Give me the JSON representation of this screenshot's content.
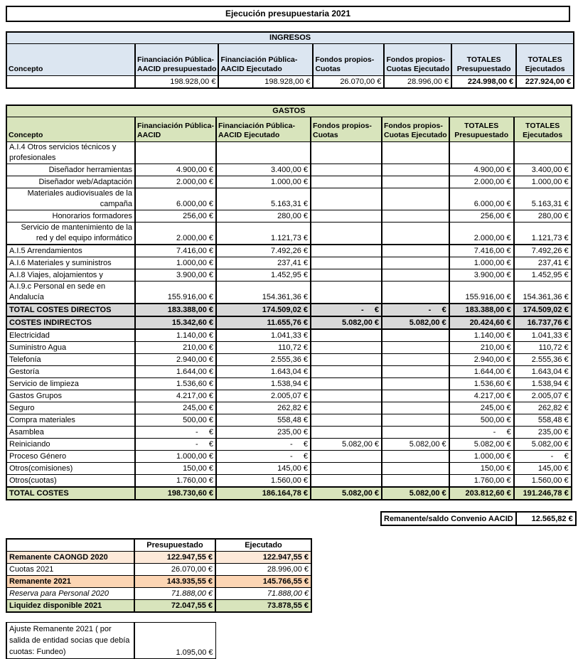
{
  "title": "Ejecución presupuestaria 2021",
  "colors": {
    "blue": "#dce6f1",
    "green": "#d8e4bc",
    "gray": "#d9d9d9",
    "peach": "#fde9d9",
    "orange": "#fcd5b4"
  },
  "ingresos": {
    "section_title": "INGRESOS",
    "headers": [
      "Concepto",
      "Financiación Pública-\nAACID presupuestado",
      "Financiación Pública-\nAACID Ejecutado",
      "Fondos propios-\nCuotas",
      "Fondos propios-\nCuotas Ejecutado",
      "TOTALES\nPresupuestado",
      "TOTALES\nEjecutados"
    ],
    "values": [
      "198.928,00 €",
      "198.928,00 €",
      "26.070,00 €",
      "28.996,00 €",
      "224.998,00 €",
      "227.924,00 €"
    ]
  },
  "gastos": {
    "section_title": "GASTOS",
    "headers": [
      "Concepto",
      "Financiación Pública-\nAACID",
      "Financiación Pública-\nAACID Ejecutado",
      "Fondos propios-\nCuotas",
      "Fondos propios-\nCuotas Ejecutado",
      "TOTALES\nPresupuestado",
      "TOTALES\nEjecutados"
    ],
    "rows": [
      {
        "label": "A.I.4 Otros servicios técnicos y profesionales",
        "align": "left",
        "style": "",
        "thick_top": false,
        "values": [
          "",
          "",
          "",
          "",
          "",
          ""
        ]
      },
      {
        "label": "Diseñador herramientas",
        "align": "right",
        "style": "",
        "thick_top": false,
        "values": [
          "4.900,00 €",
          "3.400,00 €",
          "",
          "",
          "4.900,00 €",
          "3.400,00 €"
        ]
      },
      {
        "label": "Diseñador web/Adaptación",
        "align": "right",
        "style": "",
        "thick_top": false,
        "values": [
          "2.000,00 €",
          "1.000,00 €",
          "",
          "",
          "2.000,00 €",
          "1.000,00 €"
        ]
      },
      {
        "label": "Materiales audiovisuales de la campaña",
        "align": "right",
        "style": "",
        "thick_top": false,
        "values": [
          "6.000,00 €",
          "5.163,31 €",
          "",
          "",
          "6.000,00 €",
          "5.163,31 €"
        ]
      },
      {
        "label": "Honorarios formadores",
        "align": "right",
        "style": "",
        "thick_top": false,
        "values": [
          "256,00 €",
          "280,00 €",
          "",
          "",
          "256,00 €",
          "280,00 €"
        ]
      },
      {
        "label": "Servicio de mantenimiento de la red y del equipo informático",
        "align": "right",
        "style": "",
        "thick_top": false,
        "values": [
          "2.000,00 €",
          "1.121,73 €",
          "",
          "",
          "2.000,00 €",
          "1.121,73 €"
        ]
      },
      {
        "label": "A.I.5 Arrendamientos",
        "align": "left",
        "style": "",
        "thick_top": true,
        "values": [
          "7.416,00 €",
          "7.492,26 €",
          "",
          "",
          "7.416,00 €",
          "7.492,26 €"
        ]
      },
      {
        "label": "A.I.6 Materiales y suministros",
        "align": "left",
        "style": "",
        "thick_top": false,
        "values": [
          "1.000,00 €",
          "237,41 €",
          "",
          "",
          "1.000,00 €",
          "237,41 €"
        ]
      },
      {
        "label": "A.I.8 Viajes, alojamientos y",
        "align": "left",
        "style": "",
        "thick_top": false,
        "values": [
          "3.900,00 €",
          "1.452,95 €",
          "",
          "",
          "3.900,00 €",
          "1.452,95 €"
        ]
      },
      {
        "label": "A.I.9.c Personal en sede en Andalucía",
        "align": "left",
        "style": "",
        "thick_top": false,
        "values": [
          "155.916,00 €",
          "154.361,36 €",
          "",
          "",
          "155.916,00 €",
          "154.361,36 €"
        ]
      },
      {
        "label": "TOTAL COSTES DIRECTOS",
        "align": "left",
        "style": "gray",
        "thick_top": true,
        "values": [
          "183.388,00 €",
          "174.509,02 €",
          "-     €",
          "-     €",
          "183.388,00 €",
          "174.509,02 €"
        ]
      },
      {
        "label": "COSTES INDIRECTOS",
        "align": "left",
        "style": "gray",
        "thick_top": true,
        "values": [
          "15.342,60 €",
          "11.655,76 €",
          "5.082,00 €",
          "5.082,00 €",
          "20.424,60 €",
          "16.737,76 €"
        ]
      },
      {
        "label": "Electricidad",
        "align": "left",
        "style": "",
        "thick_top": true,
        "values": [
          "1.140,00 €",
          "1.041,33 €",
          "",
          "",
          "1.140,00 €",
          "1.041,33 €"
        ]
      },
      {
        "label": "Suministro Agua",
        "align": "left",
        "style": "",
        "thick_top": false,
        "values": [
          "210,00 €",
          "110,72 €",
          "",
          "",
          "210,00 €",
          "110,72 €"
        ]
      },
      {
        "label": "Telefonía",
        "align": "left",
        "style": "",
        "thick_top": false,
        "values": [
          "2.940,00 €",
          "2.555,36 €",
          "",
          "",
          "2.940,00 €",
          "2.555,36 €"
        ]
      },
      {
        "label": "Gestoría",
        "align": "left",
        "style": "",
        "thick_top": false,
        "values": [
          "1.644,00 €",
          "1.643,04 €",
          "",
          "",
          "1.644,00 €",
          "1.643,04 €"
        ]
      },
      {
        "label": "Servicio de limpieza",
        "align": "left",
        "style": "",
        "thick_top": false,
        "values": [
          "1.536,60 €",
          "1.538,94 €",
          "",
          "",
          "1.536,60 €",
          "1.538,94 €"
        ]
      },
      {
        "label": "Gastos Grupos",
        "align": "left",
        "style": "",
        "thick_top": false,
        "values": [
          "4.217,00 €",
          "2.005,07 €",
          "",
          "",
          "4.217,00 €",
          "2.005,07 €"
        ]
      },
      {
        "label": "Seguro",
        "align": "left",
        "style": "",
        "thick_top": false,
        "values": [
          "245,00 €",
          "262,82 €",
          "",
          "",
          "245,00 €",
          "262,82 €"
        ]
      },
      {
        "label": "Compra materiales",
        "align": "left",
        "style": "",
        "thick_top": false,
        "values": [
          "500,00 €",
          "558,48 €",
          "",
          "",
          "500,00 €",
          "558,48 €"
        ]
      },
      {
        "label": "Asamblea",
        "align": "left",
        "style": "",
        "thick_top": false,
        "values": [
          "-     €",
          "235,00 €",
          "",
          "",
          "-     €",
          "235,00 €"
        ]
      },
      {
        "label": "Reiniciando",
        "align": "left",
        "style": "",
        "thick_top": false,
        "values": [
          "-     €",
          "-     €",
          "5.082,00 €",
          "5.082,00 €",
          "5.082,00 €",
          "5.082,00 €"
        ]
      },
      {
        "label": "Proceso Género",
        "align": "left",
        "style": "",
        "thick_top": false,
        "values": [
          "1.000,00 €",
          "-     €",
          "",
          "",
          "1.000,00 €",
          "-     €"
        ]
      },
      {
        "label": "Otros(comisiones)",
        "align": "left",
        "style": "",
        "thick_top": false,
        "values": [
          "150,00 €",
          "145,00 €",
          "",
          "",
          "150,00 €",
          "145,00 €"
        ]
      },
      {
        "label": "Otros(cuotas)",
        "align": "left",
        "style": "",
        "thick_top": false,
        "values": [
          "1.760,00 €",
          "1.560,00 €",
          "",
          "",
          "1.760,00 €",
          "1.560,00 €"
        ]
      },
      {
        "label": "TOTAL COSTES",
        "align": "left",
        "style": "green",
        "thick_top": true,
        "values": [
          "198.730,60 €",
          "186.164,78 €",
          "5.082,00 €",
          "5.082,00 €",
          "203.812,60 €",
          "191.246,78 €"
        ]
      }
    ]
  },
  "remanente": {
    "label": "Remanente/saldo Convenio AACID",
    "value": "12.565,82 €"
  },
  "liquidez": {
    "headers": [
      "",
      "Presupuestado",
      "Ejecutado"
    ],
    "rows": [
      {
        "label": "Remanente CAONGD 2020",
        "align": "left",
        "style": "peach",
        "thick_top": false,
        "values": [
          "122.947,55 €",
          "122.947,55 €"
        ]
      },
      {
        "label": "Cuotas 2021",
        "align": "left",
        "style": "",
        "thick_top": false,
        "values": [
          "26.070,00 €",
          "28.996,00 €"
        ]
      },
      {
        "label": "Remanente 2021",
        "align": "left",
        "style": "orange",
        "thick_top": false,
        "values": [
          "143.935,55 €",
          "145.766,55 €"
        ]
      },
      {
        "label": "Reserva para Personal 2020",
        "align": "left",
        "style": "italic",
        "thick_top": false,
        "values": [
          "71.888,00 €",
          "71.888,00 €"
        ]
      },
      {
        "label": "Liquidez disponible 2021",
        "align": "left",
        "style": "green",
        "thick_top": false,
        "values": [
          "72.047,55 €",
          "73.878,55 €"
        ]
      }
    ]
  },
  "ajuste": {
    "label": "Ajuste Remanente 2021 ( por salida de entidad socias que debía cuotas: Fundeo)",
    "value": "1.095,00 €"
  }
}
